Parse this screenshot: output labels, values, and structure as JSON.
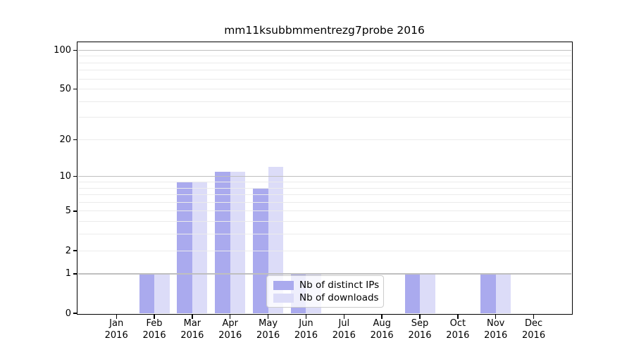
{
  "figure": {
    "background": "#ffffff"
  },
  "chart_data": {
    "type": "bar",
    "title": "mm11ksubbmmentrezg7probe 2016",
    "categories": [
      "Jan",
      "Feb",
      "Mar",
      "Apr",
      "May",
      "Jun",
      "Jul",
      "Aug",
      "Sep",
      "Oct",
      "Nov",
      "Dec"
    ],
    "x_tick_year": "2016",
    "series": [
      {
        "id": "distinct-ips",
        "name": "Nb of distinct IPs",
        "color": "#aaaaee",
        "values": [
          0,
          1,
          9,
          11,
          8,
          1,
          0,
          0,
          1,
          0,
          1,
          0
        ]
      },
      {
        "id": "downloads",
        "name": "Nb of downloads",
        "color": "#dcdcf8",
        "values": [
          0,
          1,
          9,
          11,
          12,
          1,
          0,
          0,
          1,
          0,
          1,
          0
        ]
      }
    ],
    "xlabel": "",
    "ylabel": "",
    "yscale": "log1p",
    "ylim": [
      0,
      115
    ],
    "yticks": [
      0,
      1,
      2,
      5,
      10,
      20,
      50,
      100
    ],
    "major_gridlines": [
      1,
      10,
      100
    ],
    "minor_gridlines": [
      2,
      3,
      4,
      5,
      6,
      7,
      8,
      9,
      20,
      30,
      40,
      50,
      60,
      70,
      80,
      90
    ],
    "grid": "horizontal",
    "legend_position": "lower-center",
    "legend_items": [
      "Nb of distinct IPs",
      "Nb of downloads"
    ]
  },
  "colors": {
    "bar_distinct_ips": "#aaaaee",
    "bar_downloads": "#dcdcf8",
    "major_grid": "#bfbfbf",
    "minor_grid": "#ebebeb",
    "axis": "#000000",
    "text": "#000000",
    "legend_border": "#cccccc"
  }
}
